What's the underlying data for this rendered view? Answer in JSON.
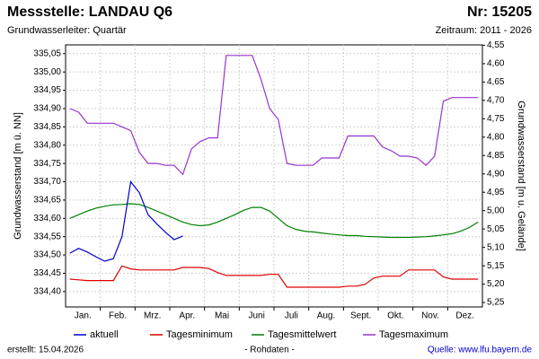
{
  "chart_data": {
    "type": "line",
    "title": "Messstelle: LANDAU Q6",
    "number": "Nr: 15205",
    "subtitle": "Grundwasserleiter: Quartär",
    "period": "Zeitraum: 2011 - 2026",
    "y_label": "Grundwasserstand [m ü. NN]",
    "y2_label": "Grundwasserstand [m u. Gelände]",
    "created": "erstellt:  15.04.2026",
    "note": "- Rohdaten -",
    "source": "Quelle: www.lfu.bayern.de",
    "grid": true,
    "legend": "bottom",
    "categories": [
      null,
      "Jan.",
      null,
      null,
      null,
      "Feb.",
      null,
      null,
      null,
      "Mrz.",
      null,
      null,
      null,
      "Apr.",
      null,
      null,
      null,
      "Mai",
      null,
      null,
      null,
      "Juni",
      null,
      null,
      null,
      "Juli",
      null,
      null,
      null,
      "Aug.",
      null,
      null,
      null,
      "Sept.",
      null,
      null,
      null,
      "Okt.",
      null,
      null,
      null,
      "Nov.",
      null,
      null,
      null,
      "Dez.",
      null,
      null
    ],
    "ylim": [
      334.358,
      335.074
    ],
    "yticks": [
      {
        "value": 334.4,
        "label": "334,40"
      },
      {
        "value": 334.45,
        "label": "334,45"
      },
      {
        "value": 334.5,
        "label": "334,50"
      },
      {
        "value": 334.55,
        "label": "334,55"
      },
      {
        "value": 334.6,
        "label": "334,60"
      },
      {
        "value": 334.65,
        "label": "334,65"
      },
      {
        "value": 334.7,
        "label": "334,70"
      },
      {
        "value": 334.75,
        "label": "334,75"
      },
      {
        "value": 334.8,
        "label": "334,80"
      },
      {
        "value": 334.85,
        "label": "334,85"
      },
      {
        "value": 334.9,
        "label": "334,90"
      },
      {
        "value": 334.95,
        "label": "334,95"
      },
      {
        "value": 335.0,
        "label": "335,00"
      },
      {
        "value": 335.05,
        "label": "335,05"
      }
    ],
    "y2lim": [
      5.262,
      4.549
    ],
    "y2ticks": [
      {
        "value": 4.55,
        "label": "4,55"
      },
      {
        "value": 4.6,
        "label": "4,60"
      },
      {
        "value": 4.65,
        "label": "4,65"
      },
      {
        "value": 4.7,
        "label": "4,70"
      },
      {
        "value": 4.75,
        "label": "4,75"
      },
      {
        "value": 4.8,
        "label": "4,80"
      },
      {
        "value": 4.85,
        "label": "4,85"
      },
      {
        "value": 4.9,
        "label": "4,90"
      },
      {
        "value": 4.95,
        "label": "4,95"
      },
      {
        "value": 5.0,
        "label": "5,00"
      },
      {
        "value": 5.05,
        "label": "5,05"
      },
      {
        "value": 5.1,
        "label": "5,10"
      },
      {
        "value": 5.15,
        "label": "5,15"
      },
      {
        "value": 5.2,
        "label": "5,20"
      },
      {
        "value": 5.25,
        "label": "5,25"
      }
    ],
    "series": [
      {
        "name": "aktuell",
        "color": "#0000cc",
        "values": [
          334.505,
          334.518,
          334.508,
          334.495,
          334.483,
          334.49,
          334.55,
          334.7,
          334.67,
          334.61,
          334.585,
          334.562,
          334.542,
          334.552,
          null,
          null,
          null,
          null,
          null,
          null,
          null,
          null,
          null,
          null,
          null,
          null,
          null,
          null,
          null,
          null,
          null,
          null,
          null,
          null,
          null,
          null,
          null,
          null,
          null,
          null,
          null,
          null,
          null,
          null,
          null,
          null,
          null,
          null
        ]
      },
      {
        "name": "Tagesminimum",
        "color": "#e00000",
        "values": [
          334.434,
          334.432,
          334.43,
          334.43,
          334.43,
          334.43,
          334.47,
          334.462,
          334.459,
          334.459,
          334.459,
          334.459,
          334.459,
          334.466,
          334.466,
          334.466,
          334.463,
          334.452,
          334.444,
          334.444,
          334.444,
          334.444,
          334.444,
          334.447,
          334.447,
          334.412,
          334.412,
          334.412,
          334.412,
          334.412,
          334.412,
          334.412,
          334.415,
          334.415,
          334.42,
          334.437,
          334.442,
          334.442,
          334.442,
          334.459,
          334.459,
          334.459,
          334.459,
          334.44,
          334.434,
          334.434,
          334.434,
          334.434
        ]
      },
      {
        "name": "Tagesmittelwert",
        "color": "#008000",
        "values": [
          334.6,
          334.61,
          334.62,
          334.628,
          334.633,
          334.637,
          334.638,
          334.64,
          334.638,
          334.63,
          334.62,
          334.61,
          334.6,
          334.59,
          334.583,
          334.58,
          334.582,
          334.59,
          334.6,
          334.61,
          334.622,
          334.63,
          334.63,
          334.62,
          334.6,
          334.58,
          334.57,
          334.565,
          334.563,
          334.56,
          334.557,
          334.555,
          334.553,
          334.553,
          334.551,
          334.55,
          334.549,
          334.548,
          334.548,
          334.548,
          334.549,
          334.55,
          334.552,
          334.555,
          334.558,
          334.565,
          334.575,
          334.59
        ]
      },
      {
        "name": "Tagesmaximum",
        "color": "#9933cc",
        "values": [
          334.9,
          334.89,
          334.86,
          334.86,
          334.86,
          334.86,
          334.85,
          334.84,
          334.78,
          334.75,
          334.75,
          334.745,
          334.745,
          334.72,
          334.79,
          334.81,
          334.82,
          334.82,
          335.045,
          335.045,
          335.045,
          335.045,
          334.98,
          334.9,
          334.87,
          334.75,
          334.745,
          334.745,
          334.745,
          334.765,
          334.765,
          334.765,
          334.825,
          334.825,
          334.825,
          334.825,
          334.795,
          334.785,
          334.77,
          334.77,
          334.765,
          334.745,
          334.77,
          334.92,
          334.93,
          334.93,
          334.93,
          334.93
        ]
      }
    ]
  }
}
